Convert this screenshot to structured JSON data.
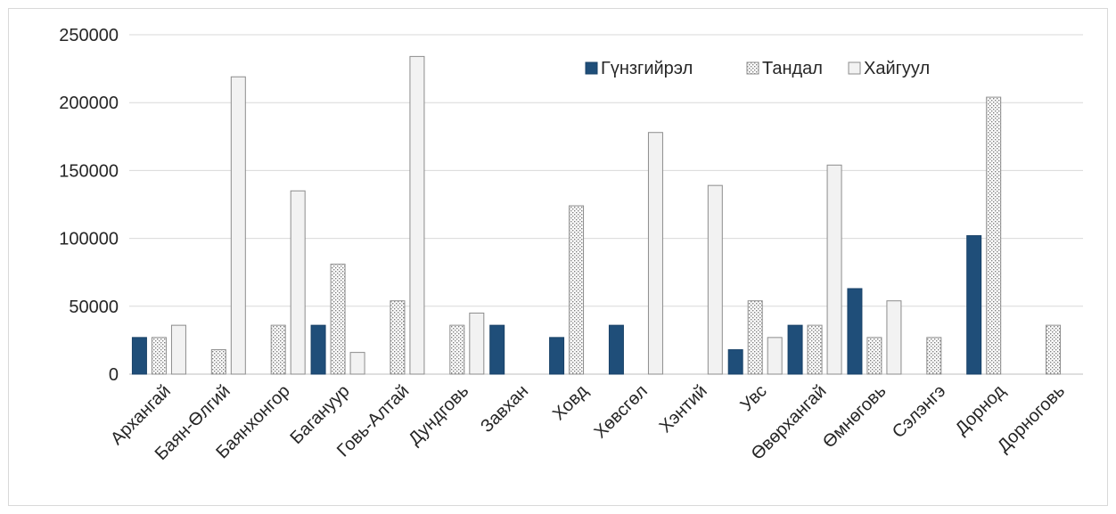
{
  "chart_data": {
    "type": "bar",
    "title": "",
    "xlabel": "",
    "ylabel": "",
    "ylim": [
      0,
      250000
    ],
    "yticks": [
      0,
      50000,
      100000,
      150000,
      200000,
      250000
    ],
    "ytick_labels": [
      "0",
      "50000",
      "100000",
      "150000",
      "200000",
      "250000"
    ],
    "grid": true,
    "legend_position": "top-right",
    "categories": [
      "Архангай",
      "Баян-Өлгий",
      "Баянхонгор",
      "Багануур",
      "Говь-Алтай",
      "Дундговь",
      "Завхан",
      "Ховд",
      "Хөвсгөл",
      "Хэнтий",
      "Увс",
      "Өвөрхангай",
      "Өмнөговь",
      "Сэлэнгэ",
      "Дорнод",
      "Дорноговь"
    ],
    "series": [
      {
        "name": "Гүнзгийрэл",
        "color": "#1f4e79",
        "pattern": "solid",
        "values": [
          27000,
          0,
          0,
          36000,
          0,
          0,
          36000,
          27000,
          36000,
          0,
          18000,
          36000,
          63000,
          0,
          102000,
          0
        ]
      },
      {
        "name": "Тандал",
        "color": "#d9d9d9",
        "pattern": "dotted",
        "values": [
          27000,
          18000,
          36000,
          81000,
          54000,
          36000,
          0,
          124000,
          0,
          0,
          54000,
          36000,
          27000,
          27000,
          204000,
          36000
        ]
      },
      {
        "name": "Хайгуул",
        "color": "#f2f2f2",
        "pattern": "light",
        "values": [
          36000,
          219000,
          135000,
          16000,
          234000,
          45000,
          0,
          0,
          178000,
          139000,
          27000,
          154000,
          54000,
          0,
          0,
          0
        ]
      }
    ]
  }
}
